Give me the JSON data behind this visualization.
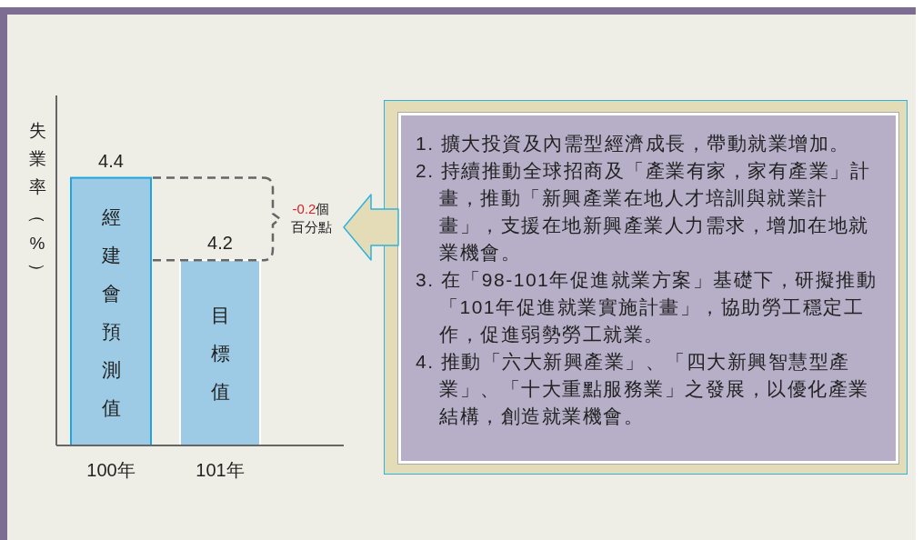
{
  "chart_data": {
    "type": "bar",
    "ylabel": "失業率（%）",
    "categories": [
      "100年",
      "101年"
    ],
    "values": [
      4.4,
      4.2
    ],
    "colors": [
      "#9dcbe6",
      "#9dcbe6"
    ],
    "ylim": [
      3.75,
      4.6
    ],
    "data_labels": true,
    "ref_lines": [
      {
        "axis": "y",
        "value": 4.4,
        "color": "#666666",
        "line_style": "dashed"
      },
      {
        "axis": "y",
        "value": 4.2,
        "color": "#666666",
        "line_style": "dashed"
      }
    ],
    "annotations": [
      {
        "text": "經建會預測值",
        "x": "100年",
        "y": 4.4
      },
      {
        "text": "目標值",
        "x": "101年",
        "y": 4.2
      },
      "-0.2個百分點",
      "1. 擴大投資及內需型經濟成長，帶動就業增加。",
      "2. 持續推動全球招商及「產業有家，家有產業」計畫，推動「新興產業在地人才培訓與就業計畫」，支援在地新興產業人力需求，增加在地就業機會。",
      "3. 在「98-101年促進就業方案」基礎下，研擬推動「101年促進就業實施計畫」，協助勞工穩定工作，促進弱勢勞工就業。",
      "4. 推動「六大新興產業」、「四大新興智慧型產業」、「十大重點服務業」之發展，以優化產業結構，創造就業機會。"
    ]
  }
}
